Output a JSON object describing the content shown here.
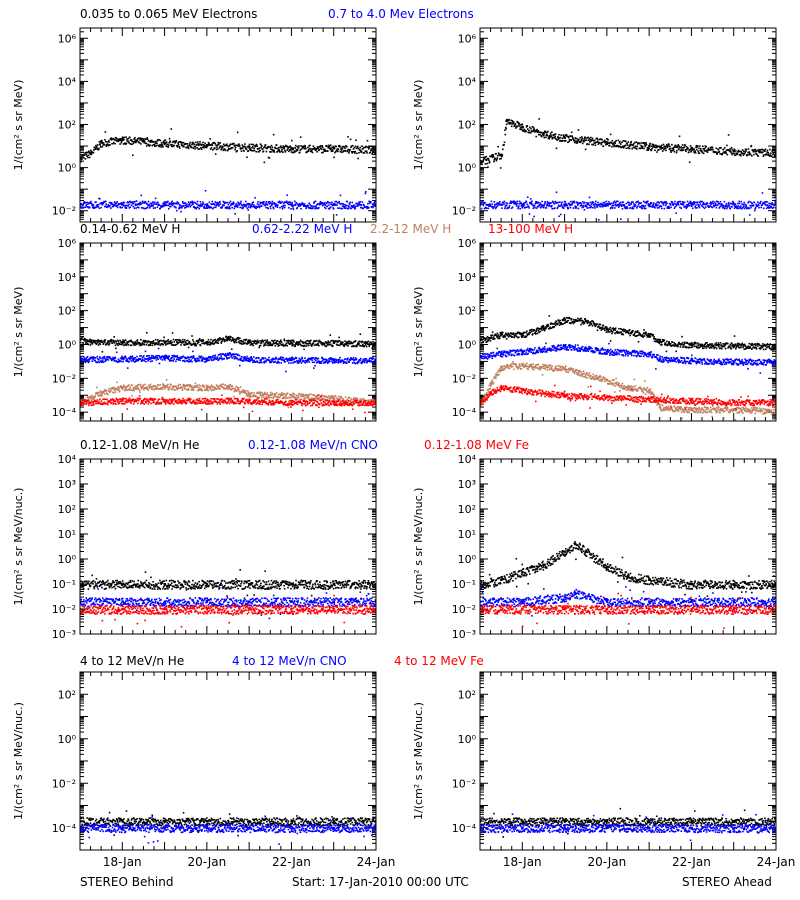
{
  "figure": {
    "footer_left": "STEREO Behind",
    "footer_center": "Start: 17-Jan-2010 00:00 UTC",
    "footer_right": "STEREO Ahead"
  },
  "chart_data": [
    {
      "type": "scatter",
      "row": 1,
      "column": "left",
      "spacecraft": "STEREO Behind",
      "ylabel": "1/(cm² s sr MeV)",
      "yscale": "log",
      "ylim": [
        0.003,
        3000000
      ],
      "yticks": [
        0.01,
        1,
        100,
        10000,
        1000000
      ],
      "ytick_labels": [
        "10⁻²",
        "10⁰",
        "10²",
        "10⁴",
        "10⁶"
      ],
      "xlim": [
        "2010-01-17",
        "2010-01-24"
      ],
      "xticks": [
        "18-Jan",
        "20-Jan",
        "22-Jan",
        "24-Jan"
      ],
      "series": [
        {
          "name": "0.035 to 0.065 MeV Electrons",
          "color": "#000000",
          "x": [
            "2010-01-17",
            "2010-01-17T06",
            "2010-01-17T12",
            "2010-01-18",
            "2010-01-18T12",
            "2010-01-19",
            "2010-01-20",
            "2010-01-21",
            "2010-01-22",
            "2010-01-23",
            "2010-01-24"
          ],
          "y": [
            3,
            5,
            15,
            20,
            17,
            14,
            11,
            9,
            8,
            8,
            7
          ]
        },
        {
          "name": "0.7 to 4.0 Mev Electrons",
          "color": "#0000ff",
          "x": [
            "2010-01-17",
            "2010-01-18",
            "2010-01-19",
            "2010-01-20",
            "2010-01-21",
            "2010-01-22",
            "2010-01-23",
            "2010-01-24"
          ],
          "y": [
            0.02,
            0.02,
            0.02,
            0.02,
            0.02,
            0.02,
            0.02,
            0.02
          ]
        }
      ]
    },
    {
      "type": "scatter",
      "row": 1,
      "column": "right",
      "spacecraft": "STEREO Ahead",
      "ylabel": "1/(cm² s sr MeV)",
      "yscale": "log",
      "ylim": [
        0.003,
        3000000
      ],
      "yticks": [
        0.01,
        1,
        100,
        10000,
        1000000
      ],
      "ytick_labels": [
        "10⁻²",
        "10⁰",
        "10²",
        "10⁴",
        "10⁶"
      ],
      "xlim": [
        "2010-01-17",
        "2010-01-24"
      ],
      "xticks": [
        "18-Jan",
        "20-Jan",
        "22-Jan",
        "24-Jan"
      ],
      "series": [
        {
          "name": "0.035 to 0.065 MeV Electrons",
          "color": "#000000",
          "x": [
            "2010-01-17",
            "2010-01-17T12",
            "2010-01-17T15",
            "2010-01-18",
            "2010-01-18T12",
            "2010-01-19",
            "2010-01-20",
            "2010-01-21",
            "2010-01-22",
            "2010-01-23",
            "2010-01-24"
          ],
          "y": [
            2,
            4,
            150,
            80,
            40,
            25,
            15,
            10,
            8,
            6,
            5
          ]
        },
        {
          "name": "0.7 to 4.0 Mev Electrons",
          "color": "#0000ff",
          "x": [
            "2010-01-17",
            "2010-01-18",
            "2010-01-19",
            "2010-01-20",
            "2010-01-21",
            "2010-01-22",
            "2010-01-23",
            "2010-01-24"
          ],
          "y": [
            0.02,
            0.02,
            0.02,
            0.02,
            0.02,
            0.02,
            0.02,
            0.02
          ]
        }
      ]
    },
    {
      "type": "scatter",
      "row": 2,
      "column": "left",
      "spacecraft": "STEREO Behind",
      "ylabel": "1/(cm² s sr MeV)",
      "yscale": "log",
      "ylim": [
        3e-05,
        1000000
      ],
      "yticks": [
        0.0001,
        0.01,
        1,
        100,
        10000,
        1000000
      ],
      "ytick_labels": [
        "10⁻⁴",
        "10⁻²",
        "10⁰",
        "10²",
        "10⁴",
        "10⁶"
      ],
      "xlim": [
        "2010-01-17",
        "2010-01-24"
      ],
      "xticks": [
        "18-Jan",
        "20-Jan",
        "22-Jan",
        "24-Jan"
      ],
      "series": [
        {
          "name": "0.14-0.62 MeV H",
          "color": "#000000",
          "x": [
            "2010-01-17",
            "2010-01-17T06",
            "2010-01-18",
            "2010-01-19",
            "2010-01-20",
            "2010-01-20T12",
            "2010-01-21",
            "2010-01-22",
            "2010-01-23",
            "2010-01-24"
          ],
          "y": [
            2,
            1.5,
            1.4,
            1.5,
            1.4,
            2.5,
            1.4,
            1.3,
            1.3,
            1.2
          ]
        },
        {
          "name": "0.62-2.22 MeV H",
          "color": "#0000ff",
          "x": [
            "2010-01-17",
            "2010-01-18",
            "2010-01-19",
            "2010-01-20",
            "2010-01-20T12",
            "2010-01-21",
            "2010-01-22",
            "2010-01-23",
            "2010-01-24"
          ],
          "y": [
            0.14,
            0.15,
            0.17,
            0.15,
            0.25,
            0.14,
            0.13,
            0.13,
            0.12
          ]
        },
        {
          "name": "2.2-12 MeV H",
          "color": "#c08060",
          "x": [
            "2010-01-17",
            "2010-01-17T12",
            "2010-01-18",
            "2010-01-19",
            "2010-01-20",
            "2010-01-20T12",
            "2010-01-21",
            "2010-01-22",
            "2010-01-23",
            "2010-01-24"
          ],
          "y": [
            0.0004,
            0.0015,
            0.003,
            0.0035,
            0.003,
            0.0035,
            0.0012,
            0.001,
            0.0007,
            0.0004
          ]
        },
        {
          "name": "13-100 MeV H",
          "color": "#ff0000",
          "x": [
            "2010-01-17",
            "2010-01-18",
            "2010-01-19",
            "2010-01-20",
            "2010-01-21",
            "2010-01-22",
            "2010-01-23",
            "2010-01-24"
          ],
          "y": [
            0.0004,
            0.0005,
            0.0005,
            0.0005,
            0.0005,
            0.0004,
            0.0004,
            0.0004
          ]
        }
      ]
    },
    {
      "type": "scatter",
      "row": 2,
      "column": "right",
      "spacecraft": "STEREO Ahead",
      "ylabel": "1/(cm² s sr MeV)",
      "yscale": "log",
      "ylim": [
        3e-05,
        1000000
      ],
      "yticks": [
        0.0001,
        0.01,
        1,
        100,
        10000,
        1000000
      ],
      "ytick_labels": [
        "10⁻⁴",
        "10⁻²",
        "10⁰",
        "10²",
        "10⁴",
        "10⁶"
      ],
      "xlim": [
        "2010-01-17",
        "2010-01-24"
      ],
      "xticks": [
        "18-Jan",
        "20-Jan",
        "22-Jan",
        "24-Jan"
      ],
      "series": [
        {
          "name": "0.14-0.62 MeV H",
          "color": "#000000",
          "x": [
            "2010-01-17",
            "2010-01-17T12",
            "2010-01-18",
            "2010-01-18T12",
            "2010-01-19",
            "2010-01-19T12",
            "2010-01-20",
            "2010-01-21",
            "2010-01-21T06",
            "2010-01-22",
            "2010-01-23",
            "2010-01-24"
          ],
          "y": [
            2,
            4,
            4,
            10,
            30,
            25,
            8,
            4,
            1.5,
            1,
            0.9,
            0.8
          ]
        },
        {
          "name": "0.62-2.22 MeV H",
          "color": "#0000ff",
          "x": [
            "2010-01-17",
            "2010-01-17T12",
            "2010-01-18",
            "2010-01-19",
            "2010-01-19T12",
            "2010-01-20",
            "2010-01-21",
            "2010-01-21T06",
            "2010-01-22",
            "2010-01-23",
            "2010-01-24"
          ],
          "y": [
            0.2,
            0.3,
            0.4,
            0.8,
            0.6,
            0.4,
            0.3,
            0.15,
            0.12,
            0.1,
            0.1
          ]
        },
        {
          "name": "2.2-12 MeV H",
          "color": "#c08060",
          "x": [
            "2010-01-17",
            "2010-01-17T06",
            "2010-01-17T12",
            "2010-01-18",
            "2010-01-19",
            "2010-01-20",
            "2010-01-20T12",
            "2010-01-21",
            "2010-01-21T06",
            "2010-01-22",
            "2010-01-23",
            "2010-01-24"
          ],
          "y": [
            0.0003,
            0.005,
            0.05,
            0.06,
            0.04,
            0.008,
            0.003,
            0.002,
            0.0002,
            0.00015,
            0.00015,
            0.00012
          ]
        },
        {
          "name": "13-100 MeV H",
          "color": "#ff0000",
          "x": [
            "2010-01-17",
            "2010-01-17T06",
            "2010-01-17T12",
            "2010-01-18",
            "2010-01-19",
            "2010-01-20",
            "2010-01-21",
            "2010-01-22",
            "2010-01-23",
            "2010-01-24"
          ],
          "y": [
            0.0004,
            0.0015,
            0.003,
            0.002,
            0.001,
            0.0008,
            0.0006,
            0.0005,
            0.0004,
            0.0004
          ]
        }
      ]
    },
    {
      "type": "scatter",
      "row": 3,
      "column": "left",
      "spacecraft": "STEREO Behind",
      "ylabel": "1/(cm² s sr MeV/nuc.)",
      "yscale": "log",
      "ylim": [
        0.001,
        10000
      ],
      "yticks": [
        0.001,
        0.01,
        0.1,
        1,
        10,
        100,
        1000,
        10000
      ],
      "ytick_labels": [
        "10⁻³",
        "10⁻²",
        "10⁻¹",
        "10⁰",
        "10¹",
        "10²",
        "10³",
        "10⁴"
      ],
      "xlim": [
        "2010-01-17",
        "2010-01-24"
      ],
      "xticks": [
        "18-Jan",
        "20-Jan",
        "22-Jan",
        "24-Jan"
      ],
      "series": [
        {
          "name": "0.12-1.08 MeV/n He",
          "color": "#000000",
          "x": [
            "2010-01-17",
            "2010-01-18",
            "2010-01-19",
            "2010-01-20",
            "2010-01-21",
            "2010-01-22",
            "2010-01-23",
            "2010-01-24"
          ],
          "y": [
            0.1,
            0.1,
            0.1,
            0.1,
            0.1,
            0.1,
            0.1,
            0.1
          ]
        },
        {
          "name": "0.12-1.08 MeV/n CNO",
          "color": "#0000ff",
          "x": [
            "2010-01-17",
            "2010-01-18",
            "2010-01-19",
            "2010-01-20",
            "2010-01-21",
            "2010-01-22",
            "2010-01-23",
            "2010-01-24"
          ],
          "y": [
            0.02,
            0.02,
            0.02,
            0.02,
            0.02,
            0.02,
            0.02,
            0.02
          ]
        },
        {
          "name": "0.12-1.08 MeV Fe",
          "color": "#ff0000",
          "x": [
            "2010-01-17",
            "2010-01-18",
            "2010-01-19",
            "2010-01-20",
            "2010-01-21",
            "2010-01-22",
            "2010-01-23",
            "2010-01-24"
          ],
          "y": [
            0.01,
            0.01,
            0.01,
            0.01,
            0.01,
            0.01,
            0.01,
            0.01
          ]
        }
      ]
    },
    {
      "type": "scatter",
      "row": 3,
      "column": "right",
      "spacecraft": "STEREO Ahead",
      "ylabel": "1/(cm² s sr MeV/nuc.)",
      "yscale": "log",
      "ylim": [
        0.001,
        10000
      ],
      "yticks": [
        0.001,
        0.01,
        0.1,
        1,
        10,
        100,
        1000,
        10000
      ],
      "ytick_labels": [
        "10⁻³",
        "10⁻²",
        "10⁻¹",
        "10⁰",
        "10¹",
        "10²",
        "10³",
        "10⁴"
      ],
      "xlim": [
        "2010-01-17",
        "2010-01-24"
      ],
      "xticks": [
        "18-Jan",
        "20-Jan",
        "22-Jan",
        "24-Jan"
      ],
      "series": [
        {
          "name": "0.12-1.08 MeV/n He",
          "color": "#000000",
          "x": [
            "2010-01-17",
            "2010-01-17T12",
            "2010-01-18",
            "2010-01-18T12",
            "2010-01-19",
            "2010-01-19T06",
            "2010-01-19T12",
            "2010-01-20",
            "2010-01-20T12",
            "2010-01-21",
            "2010-01-22",
            "2010-01-23",
            "2010-01-24"
          ],
          "y": [
            0.1,
            0.15,
            0.3,
            0.6,
            2,
            4,
            2,
            0.5,
            0.2,
            0.15,
            0.1,
            0.1,
            0.1
          ]
        },
        {
          "name": "0.12-1.08 MeV/n CNO",
          "color": "#0000ff",
          "x": [
            "2010-01-17",
            "2010-01-18",
            "2010-01-19",
            "2010-01-19T06",
            "2010-01-20",
            "2010-01-21",
            "2010-01-22",
            "2010-01-23",
            "2010-01-24"
          ],
          "y": [
            0.02,
            0.02,
            0.03,
            0.04,
            0.02,
            0.02,
            0.02,
            0.02,
            0.02
          ]
        },
        {
          "name": "0.12-1.08 MeV Fe",
          "color": "#ff0000",
          "x": [
            "2010-01-17",
            "2010-01-18",
            "2010-01-19",
            "2010-01-20",
            "2010-01-21",
            "2010-01-22",
            "2010-01-23",
            "2010-01-24"
          ],
          "y": [
            0.01,
            0.01,
            0.01,
            0.01,
            0.01,
            0.01,
            0.01,
            0.01
          ]
        }
      ]
    },
    {
      "type": "scatter",
      "row": 4,
      "column": "left",
      "spacecraft": "STEREO Behind",
      "ylabel": "1/(cm² s sr MeV/nuc.)",
      "yscale": "log",
      "ylim": [
        1e-05,
        1000
      ],
      "yticks": [
        0.0001,
        0.01,
        1,
        100
      ],
      "ytick_labels": [
        "10⁻⁴",
        "10⁻²",
        "10⁰",
        "10²"
      ],
      "xlim": [
        "2010-01-17",
        "2010-01-24"
      ],
      "xticks": [
        "18-Jan",
        "20-Jan",
        "22-Jan",
        "24-Jan"
      ],
      "series": [
        {
          "name": "4 to 12 MeV/n He",
          "color": "#000000",
          "x": [
            "2010-01-17",
            "2010-01-18",
            "2010-01-19",
            "2010-01-20",
            "2010-01-21",
            "2010-01-22",
            "2010-01-23",
            "2010-01-24"
          ],
          "y": [
            0.0002,
            0.0002,
            0.0002,
            0.0002,
            0.0002,
            0.0002,
            0.0002,
            0.0002
          ]
        },
        {
          "name": "4 to 12 MeV/n CNO",
          "color": "#0000ff",
          "x": [
            "2010-01-17",
            "2010-01-18",
            "2010-01-19",
            "2010-01-20",
            "2010-01-21",
            "2010-01-22",
            "2010-01-23",
            "2010-01-24"
          ],
          "y": [
            0.0001,
            0.0001,
            0.0001,
            0.0001,
            0.0001,
            0.0001,
            0.0001,
            0.0001
          ]
        },
        {
          "name": "4 to 12 MeV Fe",
          "color": "#ff0000",
          "x": [],
          "y": []
        }
      ]
    },
    {
      "type": "scatter",
      "row": 4,
      "column": "right",
      "spacecraft": "STEREO Ahead",
      "ylabel": "1/(cm² s sr MeV/nuc.)",
      "yscale": "log",
      "ylim": [
        1e-05,
        1000
      ],
      "yticks": [
        0.0001,
        0.01,
        1,
        100
      ],
      "ytick_labels": [
        "10⁻⁴",
        "10⁻²",
        "10⁰",
        "10²"
      ],
      "xlim": [
        "2010-01-17",
        "2010-01-24"
      ],
      "xticks": [
        "18-Jan",
        "20-Jan",
        "22-Jan",
        "24-Jan"
      ],
      "series": [
        {
          "name": "4 to 12 MeV/n He",
          "color": "#000000",
          "x": [
            "2010-01-17",
            "2010-01-18",
            "2010-01-19",
            "2010-01-20",
            "2010-01-21",
            "2010-01-22",
            "2010-01-23",
            "2010-01-24"
          ],
          "y": [
            0.0002,
            0.0002,
            0.0002,
            0.0002,
            0.0002,
            0.0002,
            0.0002,
            0.0002
          ]
        },
        {
          "name": "4 to 12 MeV/n CNO",
          "color": "#0000ff",
          "x": [
            "2010-01-17",
            "2010-01-18",
            "2010-01-19",
            "2010-01-20",
            "2010-01-21",
            "2010-01-22",
            "2010-01-23",
            "2010-01-24"
          ],
          "y": [
            0.0001,
            0.0001,
            0.0001,
            0.0001,
            0.0001,
            0.0001,
            0.0001,
            0.0001
          ]
        },
        {
          "name": "4 to 12 MeV Fe",
          "color": "#ff0000",
          "x": [],
          "y": []
        }
      ]
    }
  ]
}
